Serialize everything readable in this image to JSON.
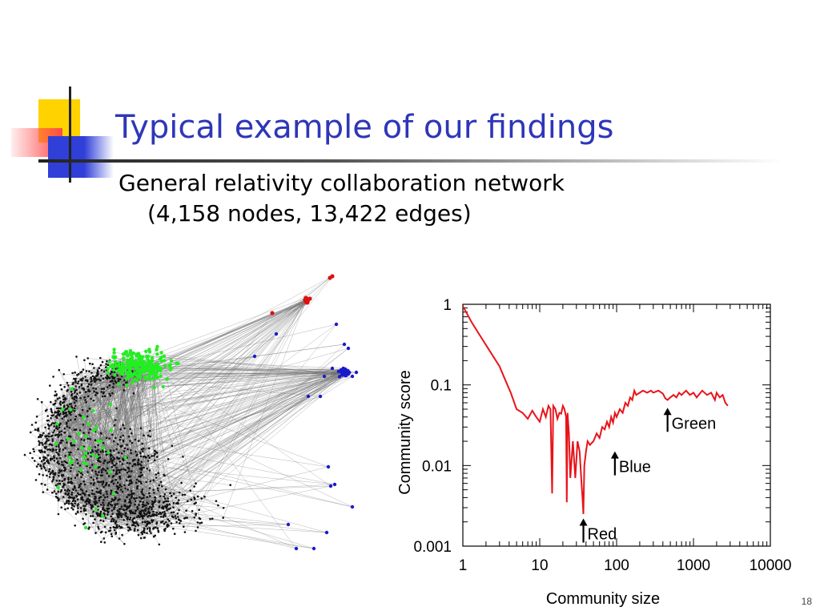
{
  "slide": {
    "title": "Typical example of our findings",
    "subtitle_line1": "General relativity collaboration network",
    "subtitle_line2": "(4,158 nodes, 13,422 edges)",
    "page_number": "18"
  },
  "colors": {
    "title": "#2e36b8",
    "curve": "#e8141a",
    "node_black": "#111111",
    "node_green": "#22ee22",
    "node_blue": "#1a1acc",
    "node_red": "#dd1111"
  },
  "network": {
    "clusters": [
      "black",
      "green",
      "blue",
      "red"
    ]
  },
  "chart_data": {
    "type": "line",
    "xlabel": "Community size",
    "ylabel": "Community score",
    "xscale": "log",
    "yscale": "log",
    "xlim": [
      1,
      10000
    ],
    "ylim": [
      0.001,
      1
    ],
    "xticks": [
      "1",
      "10",
      "100",
      "1000",
      "10000"
    ],
    "yticks": [
      "1",
      "0.1",
      "0.01",
      "0.001"
    ],
    "series": [
      {
        "x": [
          1,
          1.3,
          1.7,
          2.2,
          3,
          3.5,
          4.2,
          5,
          6,
          7,
          8,
          9,
          10,
          11,
          12,
          13,
          13.8,
          14.5,
          15,
          16,
          17,
          18,
          19,
          20,
          21,
          22,
          22.5,
          23,
          24,
          25,
          27,
          29,
          31,
          33,
          35,
          36,
          37,
          38,
          40,
          42,
          45,
          50,
          55,
          60,
          65,
          70,
          75,
          80,
          85,
          90,
          95,
          100,
          110,
          120,
          130,
          140,
          150,
          160,
          170,
          180,
          200,
          220,
          250,
          280,
          300,
          350,
          400,
          430,
          460,
          500,
          550,
          600,
          650,
          700,
          800,
          900,
          1000,
          1100,
          1300,
          1500,
          1700,
          1900,
          2000,
          2200,
          2400,
          2600,
          2800
        ],
        "y": [
          0.95,
          0.6,
          0.4,
          0.27,
          0.17,
          0.12,
          0.08,
          0.05,
          0.045,
          0.038,
          0.048,
          0.04,
          0.035,
          0.05,
          0.04,
          0.055,
          0.05,
          0.0045,
          0.055,
          0.05,
          0.038,
          0.045,
          0.044,
          0.055,
          0.05,
          0.04,
          0.0035,
          0.045,
          0.025,
          0.007,
          0.02,
          0.007,
          0.02,
          0.015,
          0.006,
          0.004,
          0.0025,
          0.01,
          0.015,
          0.02,
          0.018,
          0.02,
          0.025,
          0.022,
          0.03,
          0.028,
          0.035,
          0.03,
          0.04,
          0.034,
          0.045,
          0.04,
          0.05,
          0.045,
          0.06,
          0.055,
          0.07,
          0.065,
          0.085,
          0.075,
          0.08,
          0.085,
          0.08,
          0.085,
          0.08,
          0.085,
          0.078,
          0.068,
          0.065,
          0.07,
          0.075,
          0.07,
          0.08,
          0.075,
          0.085,
          0.075,
          0.08,
          0.07,
          0.085,
          0.075,
          0.08,
          0.065,
          0.08,
          0.07,
          0.075,
          0.06,
          0.055
        ]
      }
    ],
    "annotations": [
      {
        "label": "Red",
        "x": 37,
        "y": 0.0022
      },
      {
        "label": "Blue",
        "x": 95,
        "y": 0.015
      },
      {
        "label": "Green",
        "x": 460,
        "y": 0.052
      }
    ]
  }
}
